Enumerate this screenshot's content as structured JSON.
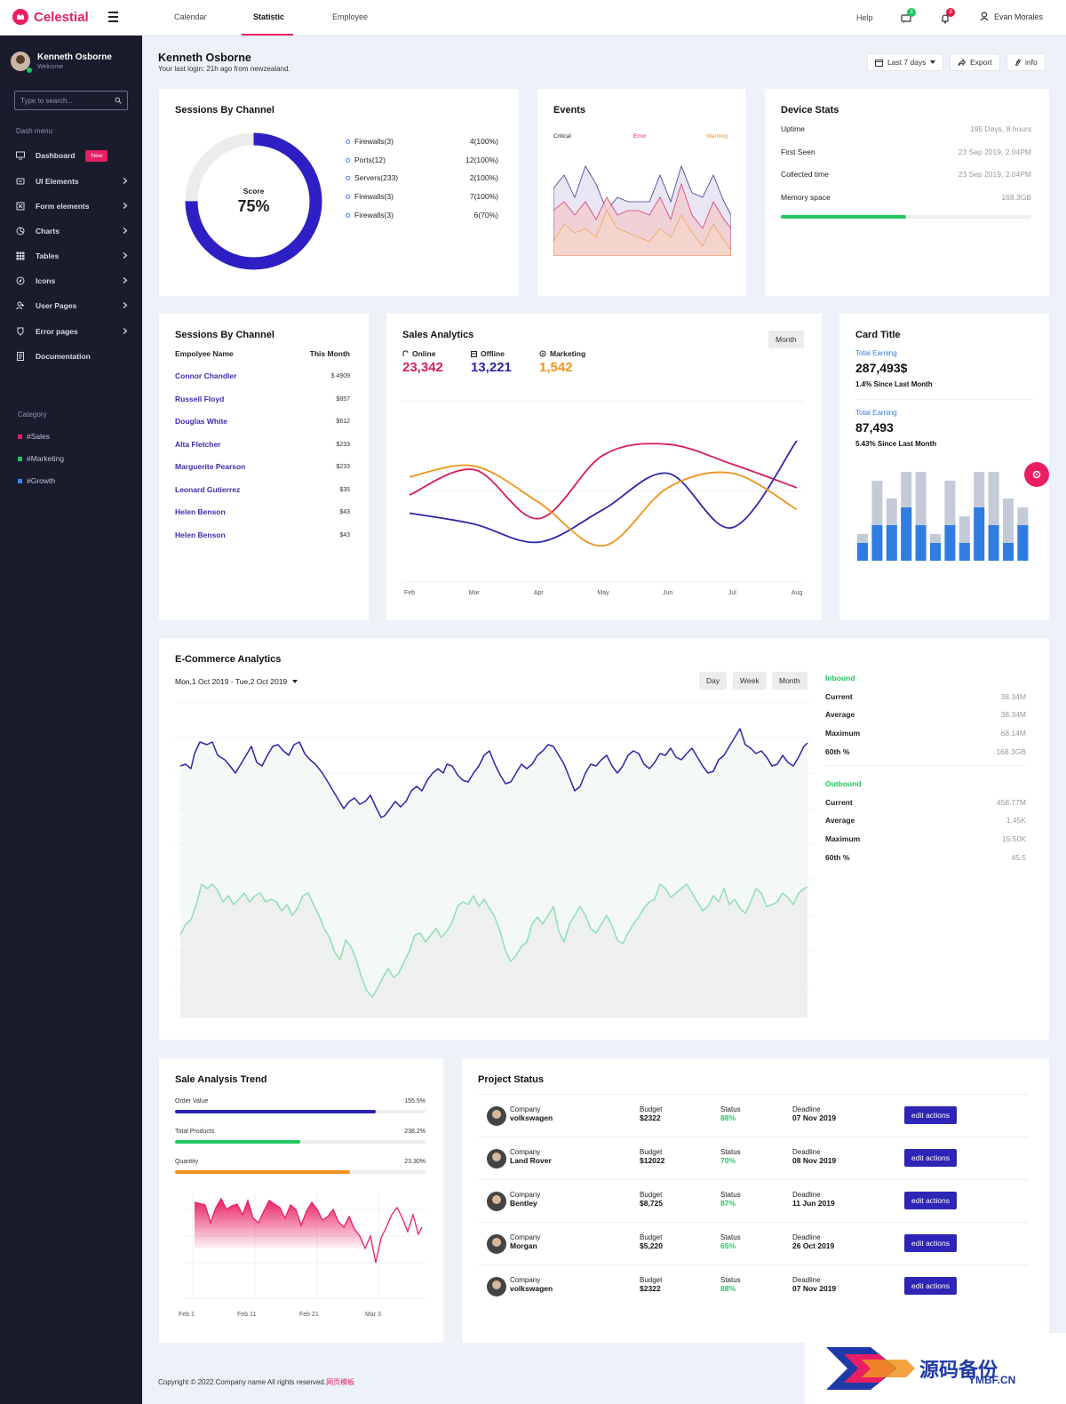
{
  "topbar": {
    "brand": "Celestial",
    "tabs": [
      "Calendar",
      "Statistic",
      "Employee"
    ],
    "active_tab": "Statistic",
    "help": "Help",
    "messages_count": "3",
    "notifications_count": "3",
    "user_name": "Evan Morales"
  },
  "sidebar": {
    "user_name": "Kenneth Osborne",
    "user_status": "Welcome",
    "search_placeholder": "Type to search...",
    "section_label": "Dash menu",
    "items": [
      {
        "label": "Dashboard",
        "icon": "monitor-icon",
        "badge": "New"
      },
      {
        "label": "UI Elements",
        "icon": "layers-icon"
      },
      {
        "label": "Form elements",
        "icon": "form-icon"
      },
      {
        "label": "Charts",
        "icon": "pie-chart-icon"
      },
      {
        "label": "Tables",
        "icon": "grid-icon"
      },
      {
        "label": "Icons",
        "icon": "compass-icon"
      },
      {
        "label": "User Pages",
        "icon": "user-plus-icon"
      },
      {
        "label": "Error pages",
        "icon": "error-icon"
      },
      {
        "label": "Documentation",
        "icon": "document-icon"
      }
    ],
    "category_label": "Category",
    "categories": [
      {
        "label": "#Sales",
        "color": "#e91e63"
      },
      {
        "label": "#Marketing",
        "color": "#22c55e"
      },
      {
        "label": "#Growth",
        "color": "#3b82f6"
      }
    ]
  },
  "header": {
    "title": "Kenneth Osborne",
    "subtitle": "Your last login: 21h ago from newzealand.",
    "range_button": "Last 7 days",
    "export_button": "Export",
    "info_button": "info"
  },
  "sessions": {
    "title": "Sessions By Channel",
    "score_label": "Score",
    "score_value": "75%",
    "score_fraction": 0.75,
    "legend": [
      {
        "label": "Firewalls(3)",
        "value": "4(100%)"
      },
      {
        "label": "Ports(12)",
        "value": "12(100%)"
      },
      {
        "label": "Servers(233)",
        "value": "2(100%)"
      },
      {
        "label": "Firewalls(3)",
        "value": "7(100%)"
      },
      {
        "label": "Firewalls(3)",
        "value": "6(70%)"
      }
    ]
  },
  "events": {
    "title": "Events",
    "legend": [
      "Critical",
      "Error",
      "Warning"
    ]
  },
  "device": {
    "title": "Device Stats",
    "rows": [
      {
        "label": "Uptime",
        "value": "195 Days, 8 hours"
      },
      {
        "label": "First Seen",
        "value": "23 Sep 2019, 2.04PM"
      },
      {
        "label": "Collected time",
        "value": "23 Sep 2019, 2.04PM"
      },
      {
        "label": "Memory space",
        "value": "168.3GB"
      }
    ],
    "memory_fraction": 0.5
  },
  "employees": {
    "title": "Sessions By Channel",
    "col_name": "Empolyee Name",
    "col_value": "This Month",
    "rows": [
      {
        "name": "Connor Chandler",
        "value": "$ 4909"
      },
      {
        "name": "Russell Floyd",
        "value": "$857"
      },
      {
        "name": "Douglas White",
        "value": "$612"
      },
      {
        "name": "Alta Fletcher",
        "value": "$233"
      },
      {
        "name": "Marguerite Pearson",
        "value": "$233"
      },
      {
        "name": "Leonard Gutierrez",
        "value": "$35"
      },
      {
        "name": "Helen Benson",
        "value": "$43"
      },
      {
        "name": "Helen Benson",
        "value": "$43"
      }
    ]
  },
  "sales": {
    "title": "Sales Analytics",
    "period_button": "Month",
    "metrics": [
      {
        "label": "Online",
        "value": "23,342",
        "color": "#d81b60"
      },
      {
        "label": "Offline",
        "value": "13,221",
        "color": "#2d25a8"
      },
      {
        "label": "Marketing",
        "value": "1,542",
        "color": "#f0931e"
      }
    ]
  },
  "cardtitle": {
    "title": "Card Title",
    "earning1_label": "Total Earning",
    "earning1_value": "287,493$",
    "earning1_sub": "1.4% Since Last Month",
    "earning2_label": "Total Earning",
    "earning2_value": "87,493",
    "earning2_sub": "5.43% Since Last Month"
  },
  "ecommerce": {
    "title": "E-Commerce Analytics",
    "date_range": "Mon,1 Oct 2019 - Tue,2 Oct 2019",
    "buttons": [
      "Day",
      "Week",
      "Month"
    ],
    "inbound_label": "Inbound",
    "inbound": [
      {
        "label": "Current",
        "value": "38.34M"
      },
      {
        "label": "Average",
        "value": "38.34M"
      },
      {
        "label": "Maximum",
        "value": "68.14M"
      },
      {
        "label": "60th %",
        "value": "168.3GB"
      }
    ],
    "outbound_label": "Outbound",
    "outbound": [
      {
        "label": "Current",
        "value": "458.77M"
      },
      {
        "label": "Average",
        "value": "1.45K"
      },
      {
        "label": "Maximum",
        "value": "15.50K"
      },
      {
        "label": "60th %",
        "value": "45.5"
      }
    ]
  },
  "trend": {
    "title": "Sale Analysis Trend",
    "bars": [
      {
        "label": "Order Value",
        "value": "155.5%",
        "fraction": 0.8,
        "color": "#2d25b5"
      },
      {
        "label": "Total Products",
        "value": "238.2%",
        "fraction": 0.5,
        "color": "#22c55e"
      },
      {
        "label": "Quantity",
        "value": "23.30%",
        "fraction": 0.7,
        "color": "#f0931e"
      }
    ]
  },
  "project": {
    "title": "Project Status",
    "company_label": "Company",
    "budget_label": "Budget",
    "status_label": "Status",
    "deadline_label": "Deadline",
    "action_label": "edit actions",
    "rows": [
      {
        "company": "volkswagen",
        "budget": "$2322",
        "status": "88%",
        "deadline": "07 Nov 2019"
      },
      {
        "company": "Land Rover",
        "budget": "$12022",
        "status": "70%",
        "deadline": "08 Nov 2019"
      },
      {
        "company": "Bentley",
        "budget": "$8,725",
        "status": "87%",
        "deadline": "11 Jun 2019"
      },
      {
        "company": "Morgan",
        "budget": "$5,220",
        "status": "65%",
        "deadline": "26 Oct 2019"
      },
      {
        "company": "volkswagen",
        "budget": "$2322",
        "status": "88%",
        "deadline": "07 Nov 2019"
      }
    ]
  },
  "footer": {
    "text": "Copyright © 2022.Company name All rights reserved.",
    "link": "网页模板"
  },
  "watermark": {
    "text": "源码备份",
    "sub": "YMBF.CN"
  },
  "chart_data": [
    {
      "type": "line",
      "id": "sales-analytics",
      "categories": [
        "Feb",
        "Mar",
        "Apr",
        "May",
        "Jun",
        "Jul",
        "Aug"
      ],
      "series": [
        {
          "name": "Online",
          "color": "#d81b60",
          "values": [
            48,
            62,
            35,
            70,
            76,
            65,
            52
          ]
        },
        {
          "name": "Offline",
          "color": "#2d25a8",
          "values": [
            38,
            32,
            22,
            40,
            60,
            30,
            78
          ]
        },
        {
          "name": "Marketing",
          "color": "#f0931e",
          "values": [
            58,
            64,
            44,
            20,
            52,
            60,
            40
          ]
        }
      ],
      "ylim": [
        0,
        100
      ]
    },
    {
      "type": "bar",
      "id": "card-title-bars",
      "series": [
        {
          "name": "back",
          "color": "#c3cbd8",
          "values": [
            30,
            90,
            70,
            100,
            100,
            30,
            90,
            50,
            100,
            100,
            70,
            60
          ]
        },
        {
          "name": "front",
          "color": "#2f7de1",
          "values": [
            20,
            40,
            40,
            60,
            40,
            20,
            40,
            20,
            60,
            40,
            20,
            40
          ]
        }
      ],
      "ylim": [
        0,
        100
      ]
    }
  ]
}
